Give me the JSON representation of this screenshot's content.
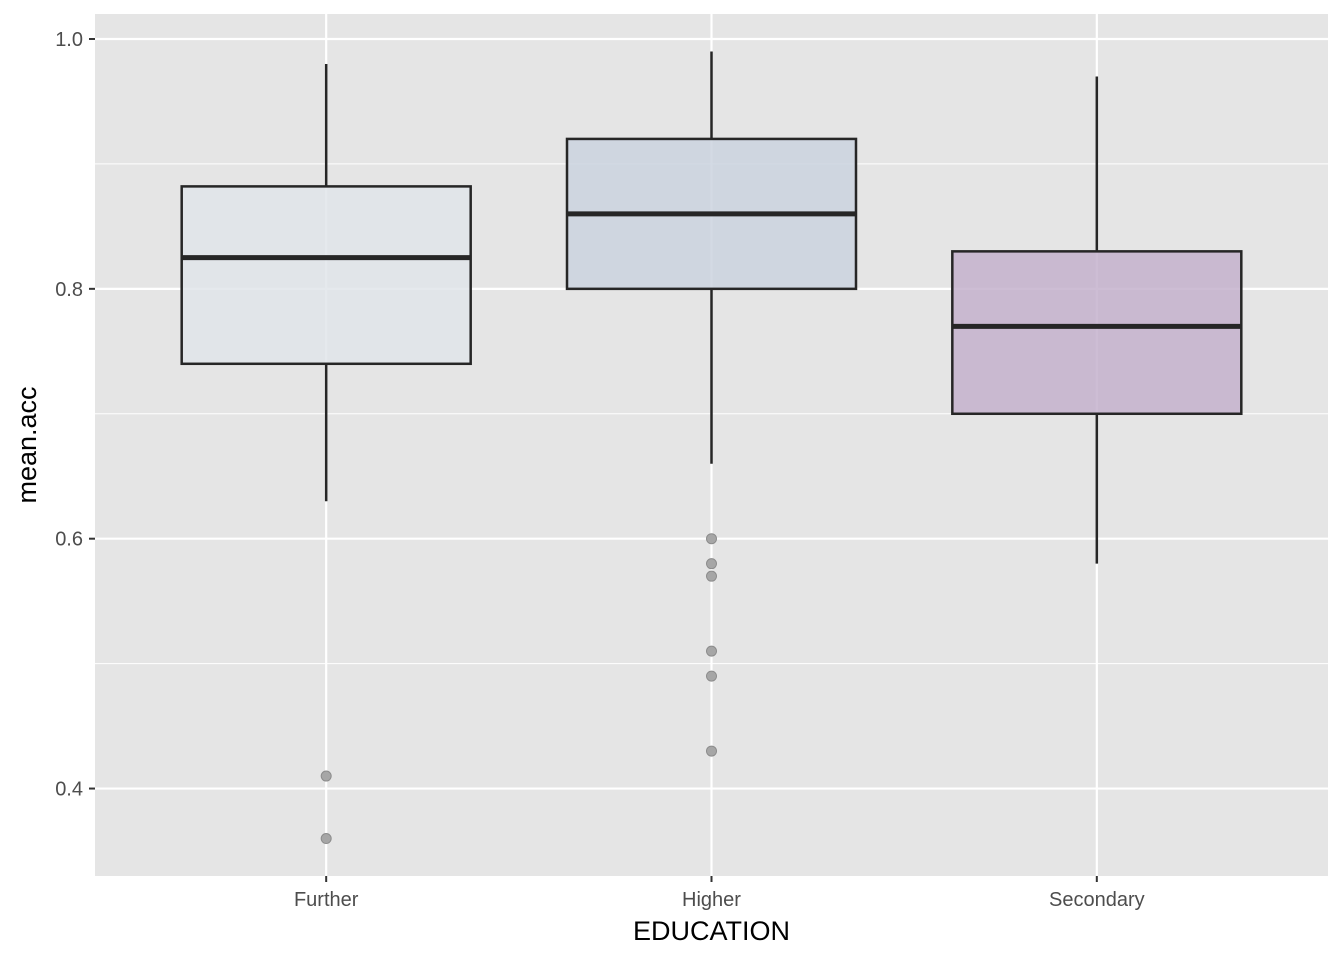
{
  "chart_data": {
    "type": "boxplot",
    "title": "",
    "xlabel": "EDUCATION",
    "ylabel": "mean.acc",
    "ylim": [
      0.33,
      1.02
    ],
    "y_ticks": [
      0.4,
      0.6,
      0.8,
      1.0
    ],
    "y_tick_labels": [
      "0.4",
      "0.6",
      "0.8",
      "1.0"
    ],
    "y_minor_ticks": [
      0.5,
      0.7,
      0.9
    ],
    "grid": true,
    "legend": "none",
    "panel_background": "#e5e5e5",
    "grid_color": "#ffffff",
    "categories": [
      "Further",
      "Higher",
      "Secondary"
    ],
    "boxes": [
      {
        "category": "Further",
        "whisker_low": 0.63,
        "q1": 0.74,
        "median": 0.825,
        "q3": 0.882,
        "whisker_high": 0.98,
        "outliers": [
          0.41,
          0.36
        ],
        "fill": "#e1e5ea"
      },
      {
        "category": "Higher",
        "whisker_low": 0.66,
        "q1": 0.8,
        "median": 0.86,
        "q3": 0.92,
        "whisker_high": 0.99,
        "outliers": [
          0.6,
          0.58,
          0.57,
          0.51,
          0.49,
          0.43
        ],
        "fill": "#cbd4df"
      },
      {
        "category": "Secondary",
        "whisker_low": 0.58,
        "q1": 0.7,
        "median": 0.77,
        "q3": 0.83,
        "whisker_high": 0.97,
        "outliers": [],
        "fill": "#c4b1cd"
      }
    ]
  }
}
